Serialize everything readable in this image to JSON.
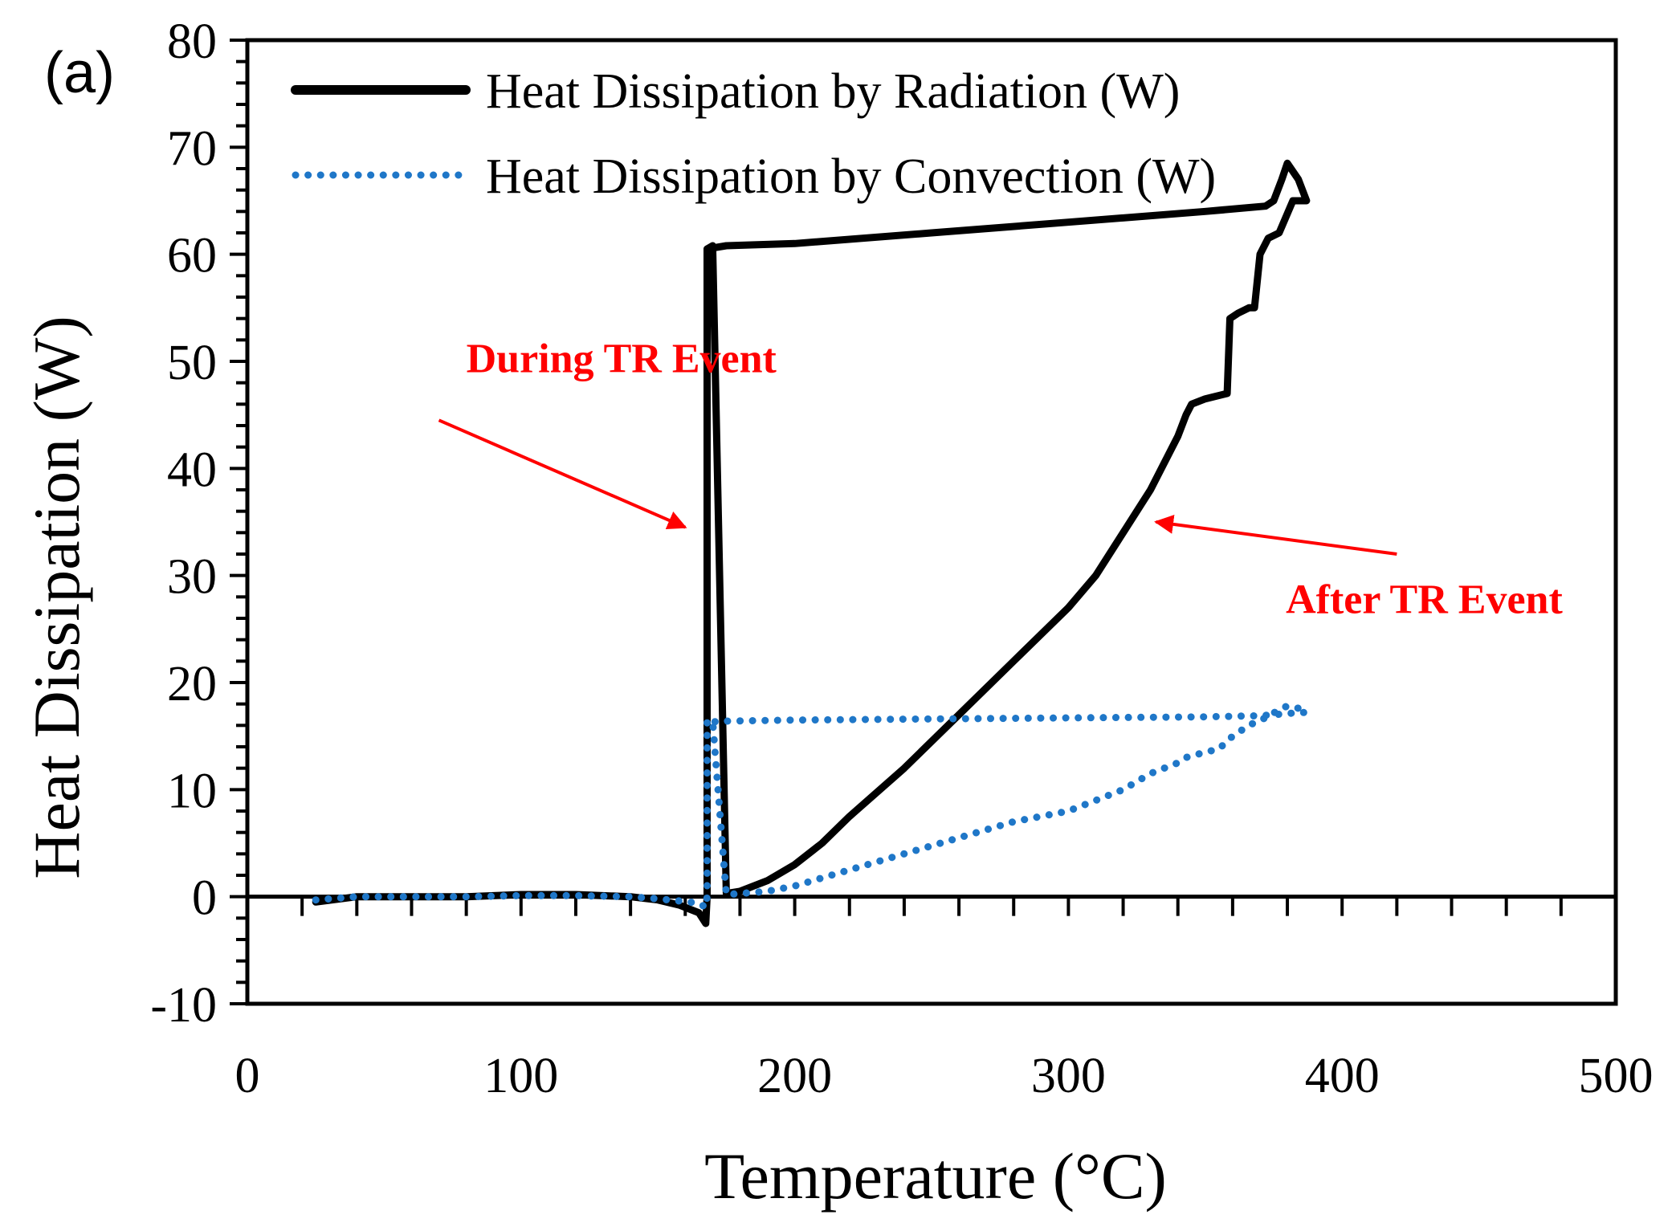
{
  "chart_data": {
    "type": "line",
    "panel_label": "(a)",
    "xlabel": "Temperature (°C)",
    "ylabel": "Heat Dissipation (W)",
    "xlim": [
      0,
      500
    ],
    "ylim": [
      -10,
      80
    ],
    "x_ticks": [
      0,
      100,
      200,
      300,
      400,
      500
    ],
    "x_tick_labels": [
      "0",
      "100",
      "200",
      "300",
      "400",
      "500"
    ],
    "y_ticks": [
      -10,
      0,
      10,
      20,
      30,
      40,
      50,
      60,
      70,
      80
    ],
    "y_tick_labels": [
      "-10",
      "0",
      "10",
      "20",
      "30",
      "40",
      "50",
      "60",
      "70",
      "80"
    ],
    "grid": false,
    "legend_position": "top-left",
    "series": [
      {
        "name": "Heat Dissipation by Radiation (W)",
        "style": "solid",
        "color": "#000000",
        "x": [
          25,
          40,
          60,
          80,
          100,
          120,
          140,
          150,
          158,
          165,
          167.5,
          168,
          168,
          170,
          175,
          180,
          185,
          190,
          200,
          210,
          220,
          240,
          260,
          280,
          300,
          310,
          320,
          330,
          340,
          343,
          345,
          350,
          358,
          359,
          362,
          366,
          368,
          370,
          373,
          377,
          382,
          387,
          384,
          380,
          378,
          375,
          372,
          350,
          300,
          250,
          200,
          175,
          168
        ],
        "values": [
          -0.5,
          0,
          0,
          0,
          0.2,
          0.2,
          0,
          -0.3,
          -0.8,
          -1.5,
          -2.5,
          0,
          60.5,
          60.8,
          0.3,
          0.5,
          1,
          1.5,
          3,
          5,
          7.5,
          12,
          17,
          22,
          27,
          30,
          34,
          38,
          43,
          45,
          46,
          46.5,
          47,
          54,
          54.5,
          55,
          55,
          60,
          61.5,
          62,
          65,
          65,
          67,
          68.5,
          67,
          65,
          64.5,
          64,
          63,
          62,
          61,
          60.8,
          60.5
        ]
      },
      {
        "name": "Heat Dissipation by Convection (W)",
        "style": "dotted",
        "color": "#1f77c8",
        "x": [
          25,
          40,
          60,
          80,
          100,
          120,
          140,
          150,
          158,
          165,
          167.5,
          168,
          168,
          170,
          175,
          180,
          185,
          190,
          200,
          220,
          240,
          260,
          280,
          300,
          310,
          320,
          330,
          340,
          343,
          350,
          355,
          360,
          366,
          370,
          373,
          377,
          380,
          384,
          387,
          384,
          380,
          375,
          370,
          350,
          300,
          250,
          200,
          175,
          168
        ],
        "values": [
          -0.3,
          0,
          0,
          0,
          0.1,
          0.1,
          0,
          -0.2,
          -0.4,
          -0.6,
          -1,
          0,
          16.3,
          16.4,
          0.2,
          0.3,
          0.4,
          0.5,
          1,
          2.5,
          4,
          5.5,
          7,
          8,
          9,
          10,
          11.5,
          12.5,
          13,
          13.5,
          13.8,
          15,
          16,
          16.5,
          16.8,
          17.5,
          17.8,
          17.6,
          17.2,
          17.2,
          17.1,
          17,
          16.9,
          16.8,
          16.7,
          16.6,
          16.5,
          16.4,
          16.3
        ]
      }
    ],
    "annotations": [
      {
        "text": "During TR Event",
        "color": "#ff0000",
        "text_at": [
          80,
          49
        ],
        "arrow_from": [
          70,
          44.5
        ],
        "arrow_to": [
          160,
          34.5
        ]
      },
      {
        "text": "After TR Event",
        "color": "#ff0000",
        "text_at": [
          430,
          26.5
        ],
        "arrow_from": [
          420,
          32
        ],
        "arrow_to": [
          332,
          35
        ]
      }
    ]
  }
}
